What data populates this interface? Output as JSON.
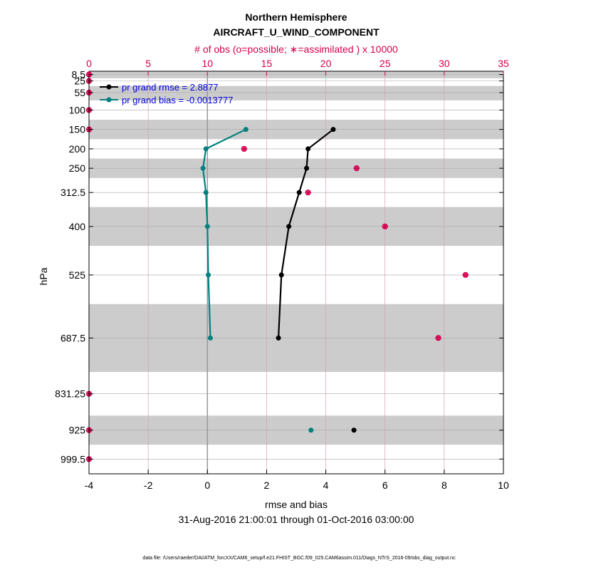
{
  "chart_data": {
    "type": "line",
    "title": "Northern Hemisphere",
    "subtitle": "AIRCRAFT_U_WIND_COMPONENT",
    "top_axis_label": "# of obs (o=possible; ∗=assimilated ) x 10000",
    "xlabel": "rmse and bias",
    "ylabel": "hPa",
    "date_range": "31-Aug-2016 21:00:01 through 01-Oct-2016 03:00:00",
    "footnote": "data file: /Users/raeder/DAI/ATM_forcXX/CAM6_setup/f.e21.FHIST_BGC.f09_025.CAM6assim.011/Diags_NTrS_2016-09/obs_diag_output.nc",
    "xlim": [
      -4,
      10
    ],
    "x_ticks": [
      -4,
      -2,
      0,
      2,
      4,
      6,
      8,
      10
    ],
    "top_xlim": [
      0,
      35
    ],
    "top_ticks": [
      0,
      5,
      10,
      15,
      20,
      25,
      30,
      35
    ],
    "levels": [
      8.5,
      25,
      55,
      100,
      150,
      200,
      250,
      312.5,
      400,
      525,
      687.5,
      831.25,
      925,
      999.5
    ],
    "level_labels": [
      "8.5",
      "25",
      "55",
      "100",
      "150",
      "200",
      "250",
      "312.5",
      "400",
      "525",
      "687.5",
      "831.25",
      "925",
      "999.5"
    ],
    "level_bounds": [
      0,
      18,
      38,
      75,
      125,
      175,
      225,
      275,
      350,
      450,
      600,
      775,
      887.5,
      962.5,
      1037.5
    ],
    "ylim": [
      1037.5,
      0
    ],
    "shaded_layers": [
      [
        0,
        18
      ],
      [
        38,
        75
      ],
      [
        125,
        175
      ],
      [
        225,
        275
      ],
      [
        350,
        450
      ],
      [
        600,
        775
      ],
      [
        887.5,
        962.5
      ]
    ],
    "series": [
      {
        "name": "pr grand rmse",
        "legend": "pr grand rmse = 2.8877",
        "color": "#000000",
        "levels": [
          150,
          200,
          250,
          312.5,
          400,
          525,
          687.5
        ],
        "values": [
          4.25,
          3.4,
          3.35,
          3.1,
          2.75,
          2.5,
          2.4
        ],
        "isolated": [
          {
            "level": 925,
            "value": 4.95
          }
        ]
      },
      {
        "name": "pr grand bias",
        "legend": "pr grand bias = -0.0013777",
        "color": "#008080",
        "levels": [
          150,
          200,
          250,
          312.5,
          400,
          525,
          687.5
        ],
        "values": [
          1.3,
          -0.05,
          -0.15,
          -0.05,
          0.0,
          0.03,
          0.1
        ],
        "isolated": [
          {
            "level": 925,
            "value": 3.5
          }
        ]
      }
    ],
    "obs_counts": {
      "color": "#d6004f",
      "units": "x 10000",
      "levels": [
        8.5,
        25,
        55,
        100,
        150,
        200,
        250,
        312.5,
        400,
        525,
        687.5,
        831.25,
        925,
        999.5
      ],
      "possible": [
        0,
        0,
        0,
        0,
        0,
        13.1,
        22.6,
        18.5,
        25.0,
        31.8,
        29.5,
        0,
        0,
        0
      ],
      "assimilated": [
        0,
        0,
        0,
        0,
        0,
        13.1,
        22.6,
        18.5,
        25.0,
        31.8,
        29.5,
        0,
        0,
        0
      ]
    }
  }
}
